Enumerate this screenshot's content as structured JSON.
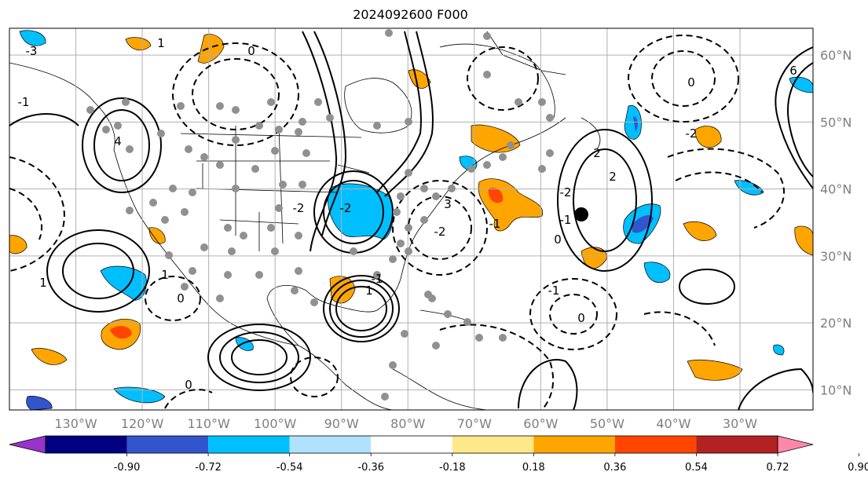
{
  "title": "2024092600 F000",
  "map": {
    "lon_range": [
      -140,
      -19
    ],
    "lat_range": [
      7,
      64
    ],
    "lon_ticks": [
      "130°W",
      "120°W",
      "110°W",
      "100°W",
      "90°W",
      "80°W",
      "70°W",
      "60°W",
      "50°W",
      "40°W",
      "30°W"
    ],
    "lat_ticks": [
      "10°N",
      "20°N",
      "30°N",
      "40°N",
      "50°N",
      "60°N"
    ],
    "lon_values": [
      -130,
      -120,
      -110,
      -100,
      -90,
      -80,
      -70,
      -60,
      -50,
      -40,
      -30
    ],
    "lat_values": [
      10,
      20,
      30,
      40,
      50,
      60
    ],
    "grid": true
  },
  "colorbar": {
    "labels": [
      "-0.90",
      "-0.72",
      "-0.54",
      "-0.36",
      "-0.18",
      "0.18",
      "0.36",
      "0.54",
      "0.72",
      "0.90"
    ],
    "colors": [
      "#9933cc",
      "#000080",
      "#3355cc",
      "#00bfff",
      "#aee2ff",
      "#ffffff",
      "#ffe88a",
      "#ffa500",
      "#ff4500",
      "#b22222",
      "#ff88aa"
    ],
    "extend": "both"
  },
  "contour_labels": [
    "2",
    "3",
    "4",
    "-2",
    "0",
    "6",
    "-1",
    "1",
    "-2",
    "0",
    "2",
    "-2",
    "-1",
    "0",
    "-2",
    "0",
    "-1",
    "1",
    "-1",
    "1",
    "-2",
    "0",
    "-3",
    "1",
    "0",
    "-1"
  ],
  "icons": {
    "observation_dots": "gray-dot-icon",
    "marker": "black-dot-icon"
  }
}
